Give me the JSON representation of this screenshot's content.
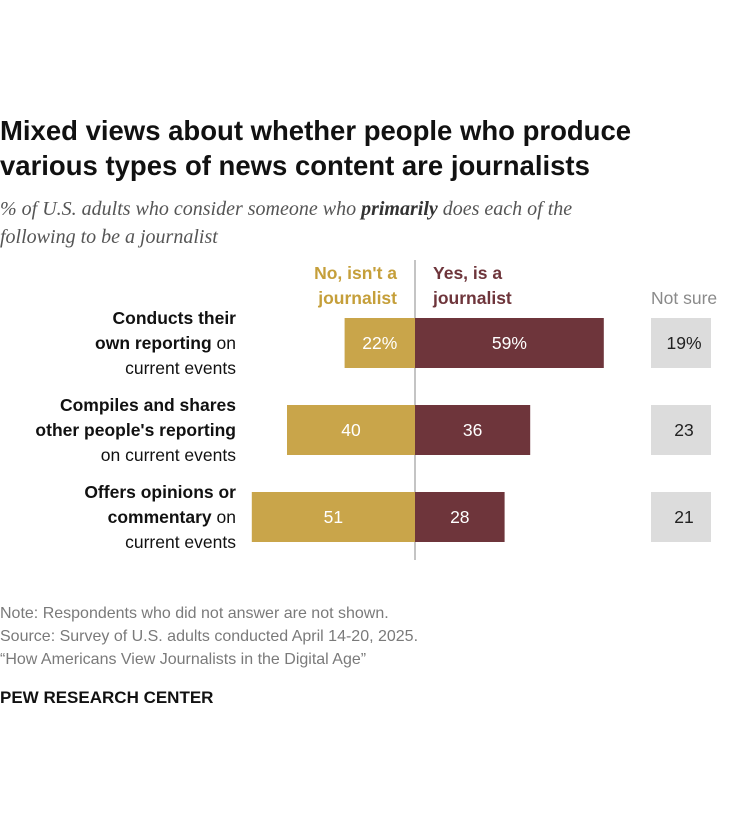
{
  "title_line1": "Mixed views about whether people who produce",
  "title_line2": "various types of news content are journalists",
  "subtitle": {
    "before": "% of U.S. adults who consider someone who ",
    "emphasis": "primarily",
    "after": " does each of the",
    "line2": "following to be a journalist"
  },
  "legend": {
    "no_line1": "No, isn't a",
    "no_line2": "journalist",
    "yes_line1": "Yes, is a",
    "yes_line2": "journalist",
    "not_sure": "Not sure"
  },
  "colors": {
    "no": "#c9a54a",
    "yes": "#6e353b",
    "not_sure": "#dcdcdc",
    "no_text": "#c59f3a",
    "yes_text": "#6e353b"
  },
  "chart_data": {
    "type": "bar",
    "title": "Mixed views about whether people who produce various types of news content are journalists",
    "subtitle": "% of U.S. adults who consider someone who primarily does each of the following to be a journalist",
    "categories": [
      "Conducts their own reporting on current events",
      "Compiles and shares other people's reporting on current events",
      "Offers opinions or commentary on current events"
    ],
    "category_label_lines": [
      [
        {
          "bold": "Conducts their",
          "normal": ""
        },
        {
          "bold": "own reporting",
          "normal": " on"
        },
        {
          "bold": "",
          "normal": "current events"
        }
      ],
      [
        {
          "bold": "Compiles and shares",
          "normal": ""
        },
        {
          "bold": "other people's reporting",
          "normal": ""
        },
        {
          "bold": "",
          "normal": "on current events"
        }
      ],
      [
        {
          "bold": "Offers opinions or",
          "normal": ""
        },
        {
          "bold": "commentary",
          "normal": " on"
        },
        {
          "bold": "",
          "normal": "current events"
        }
      ]
    ],
    "series": [
      {
        "name": "No, isn't a journalist",
        "values": [
          22,
          40,
          51
        ],
        "labels": [
          "22%",
          "40",
          "51"
        ]
      },
      {
        "name": "Yes, is a journalist",
        "values": [
          59,
          36,
          28
        ],
        "labels": [
          "59%",
          "36",
          "28"
        ]
      },
      {
        "name": "Not sure",
        "values": [
          19,
          23,
          21
        ],
        "labels": [
          "19%",
          "23",
          "21"
        ]
      }
    ]
  },
  "notes": {
    "note": "Note: Respondents who did not answer are not shown.",
    "source": "Source: Survey of U.S. adults conducted April 14-20, 2025.",
    "report": "“How Americans View Journalists in the Digital Age”"
  },
  "brand": "PEW RESEARCH CENTER"
}
